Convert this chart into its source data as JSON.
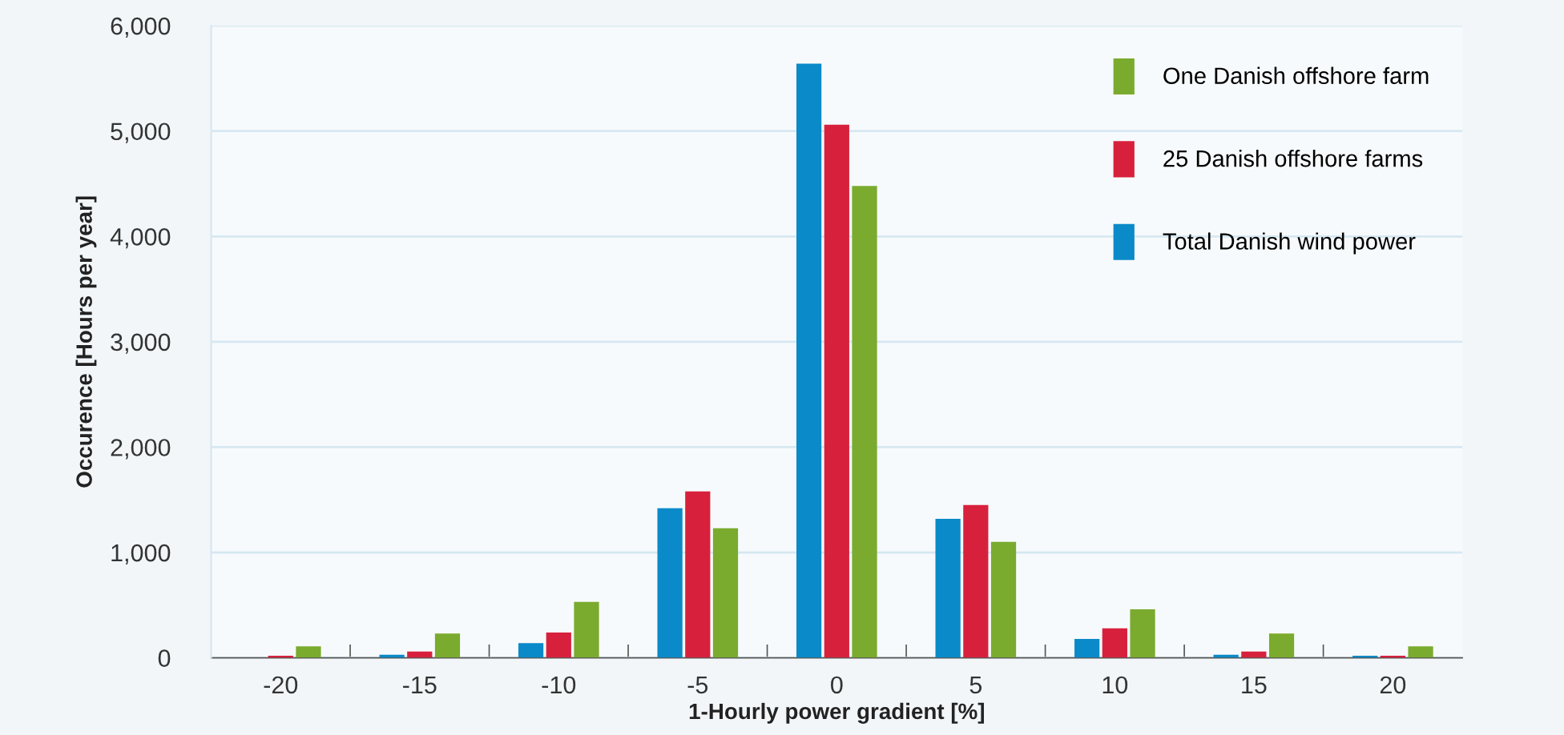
{
  "chart_data": {
    "type": "bar",
    "xlabel": "1-Hourly power gradient [%]",
    "ylabel": "Occurence [Hours per year]",
    "categories": [
      "-20",
      "-15",
      "-10",
      "-5",
      "0",
      "5",
      "10",
      "15",
      "20"
    ],
    "series": [
      {
        "name": "Total Danish wind power",
        "color": "#0a8ac8",
        "values": [
          null,
          30,
          140,
          1420,
          5640,
          1320,
          180,
          30,
          20
        ]
      },
      {
        "name": "25 Danish offshore farms",
        "color": "#d7213c",
        "values": [
          20,
          60,
          240,
          1580,
          5060,
          1450,
          280,
          60,
          20
        ]
      },
      {
        "name": "One Danish offshore farm",
        "color": "#7aab2e",
        "values": [
          110,
          230,
          530,
          1230,
          4480,
          1100,
          460,
          230,
          110
        ]
      }
    ],
    "ylim": [
      0,
      6000
    ],
    "yticks": [
      {
        "value": 0,
        "label": "0"
      },
      {
        "value": 1000,
        "label": "1,000"
      },
      {
        "value": 2000,
        "label": "2,000"
      },
      {
        "value": 3000,
        "label": "3,000"
      },
      {
        "value": 4000,
        "label": "4,000"
      },
      {
        "value": 5000,
        "label": "5,000"
      },
      {
        "value": 6000,
        "label": "6,000"
      }
    ],
    "grid": "y",
    "legend": "top right"
  }
}
